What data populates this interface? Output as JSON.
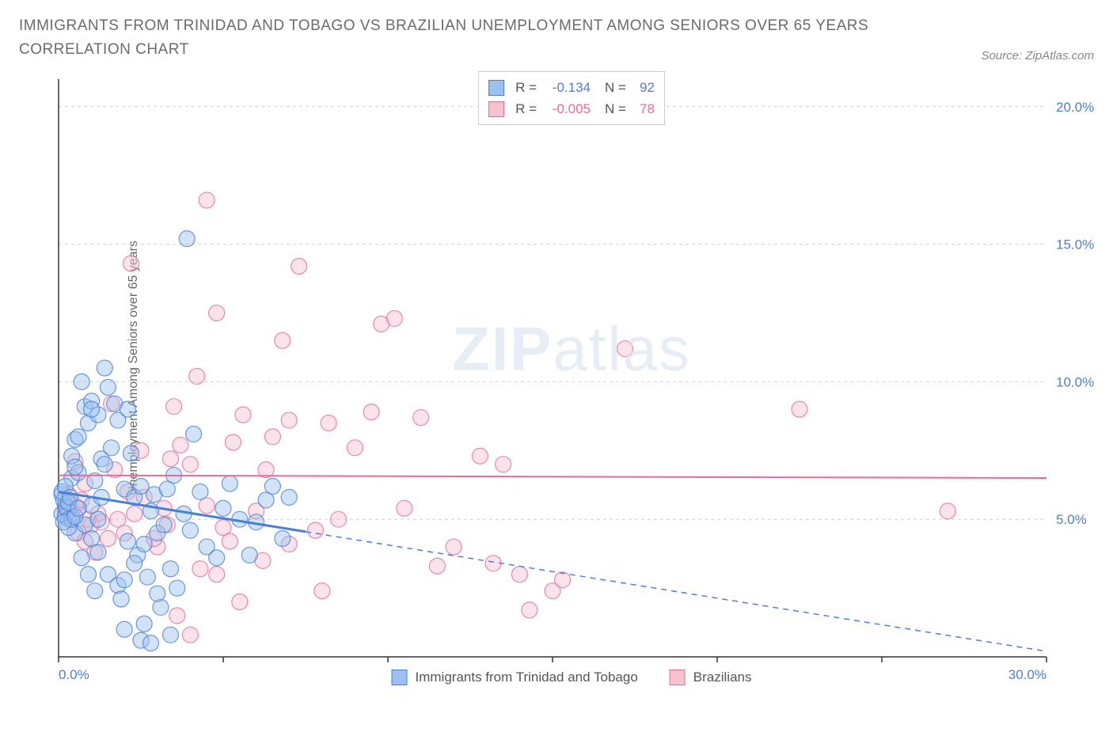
{
  "title": "IMMIGRANTS FROM TRINIDAD AND TOBAGO VS BRAZILIAN UNEMPLOYMENT AMONG SENIORS OVER 65 YEARS CORRELATION CHART",
  "source": "Source: ZipAtlas.com",
  "y_axis_label": "Unemployment Among Seniors over 65 years",
  "watermark_zip": "ZIP",
  "watermark_atlas": "atlas",
  "chart": {
    "type": "scatter",
    "background_color": "#ffffff",
    "grid_color": "#d0d0d0",
    "x_range": [
      0,
      30
    ],
    "y_range": [
      0,
      21
    ],
    "x_ticks": [
      0,
      5,
      10,
      15,
      20,
      25,
      30
    ],
    "x_tick_labels": [
      "0.0%",
      "",
      "",
      "",
      "",
      "",
      "30.0%"
    ],
    "x_tick_color": "#4a7fd8",
    "y_ticks": [
      5,
      10,
      15,
      20
    ],
    "y_tick_labels": [
      "5.0%",
      "10.0%",
      "15.0%",
      "20.0%"
    ],
    "y_tick_color": "#4a7fd8",
    "axis_line_color": "#333333",
    "marker_radius": 10,
    "marker_opacity": 0.45,
    "series": [
      {
        "name": "Immigrants from Trinidad and Tobago",
        "color_fill": "#9cc1f0",
        "color_stroke": "#4a7fd8",
        "r": "-0.134",
        "n": "92",
        "trend": {
          "y_start": 6.0,
          "y_end": 0.2,
          "solid_until_x": 7.5,
          "stroke_width": 3
        },
        "points": [
          [
            0.1,
            5.2
          ],
          [
            0.2,
            5.5
          ],
          [
            0.1,
            5.9
          ],
          [
            0.3,
            5.3
          ],
          [
            0.2,
            5.1
          ],
          [
            0.15,
            5.7
          ],
          [
            0.25,
            5.4
          ],
          [
            0.1,
            6.0
          ],
          [
            0.3,
            5.6
          ],
          [
            0.5,
            7.9
          ],
          [
            0.4,
            6.5
          ],
          [
            0.6,
            6.7
          ],
          [
            0.3,
            5.0
          ],
          [
            0.7,
            10.0
          ],
          [
            0.8,
            9.1
          ],
          [
            0.5,
            4.5
          ],
          [
            0.9,
            8.5
          ],
          [
            1.0,
            9.3
          ],
          [
            1.2,
            8.8
          ],
          [
            1.3,
            7.2
          ],
          [
            1.5,
            9.8
          ],
          [
            1.4,
            7.0
          ],
          [
            1.6,
            7.6
          ],
          [
            1.8,
            8.6
          ],
          [
            1.1,
            6.4
          ],
          [
            1.7,
            9.2
          ],
          [
            2.0,
            6.1
          ],
          [
            2.2,
            7.4
          ],
          [
            2.3,
            5.8
          ],
          [
            2.5,
            6.2
          ],
          [
            2.8,
            5.3
          ],
          [
            2.4,
            3.7
          ],
          [
            2.6,
            4.1
          ],
          [
            3.0,
            4.5
          ],
          [
            3.2,
            4.8
          ],
          [
            3.5,
            6.6
          ],
          [
            3.8,
            5.2
          ],
          [
            3.4,
            3.2
          ],
          [
            3.6,
            2.5
          ],
          [
            4.0,
            4.6
          ],
          [
            1.2,
            3.8
          ],
          [
            1.5,
            3.0
          ],
          [
            1.8,
            2.6
          ],
          [
            2.0,
            2.8
          ],
          [
            2.3,
            3.4
          ],
          [
            2.7,
            2.9
          ],
          [
            2.1,
            4.2
          ],
          [
            1.0,
            5.5
          ],
          [
            1.3,
            5.8
          ],
          [
            1.4,
            10.5
          ],
          [
            0.6,
            8.0
          ],
          [
            0.8,
            4.8
          ],
          [
            1.0,
            4.3
          ],
          [
            1.2,
            5.0
          ],
          [
            2.0,
            1.0
          ],
          [
            2.5,
            0.6
          ],
          [
            2.8,
            0.5
          ],
          [
            3.1,
            1.8
          ],
          [
            3.4,
            0.8
          ],
          [
            3.0,
            2.3
          ],
          [
            2.6,
            1.2
          ],
          [
            1.9,
            2.1
          ],
          [
            0.9,
            3.0
          ],
          [
            1.1,
            2.4
          ],
          [
            0.7,
            3.6
          ],
          [
            4.1,
            8.1
          ],
          [
            4.3,
            6.0
          ],
          [
            4.5,
            4.0
          ],
          [
            4.8,
            3.6
          ],
          [
            5.0,
            5.4
          ],
          [
            5.2,
            6.3
          ],
          [
            5.5,
            5.0
          ],
          [
            5.8,
            3.7
          ],
          [
            6.0,
            4.9
          ],
          [
            6.3,
            5.7
          ],
          [
            6.5,
            6.2
          ],
          [
            6.8,
            4.3
          ],
          [
            7.0,
            5.8
          ],
          [
            0.4,
            7.3
          ],
          [
            0.5,
            6.9
          ],
          [
            3.9,
            15.2
          ],
          [
            1.0,
            9.0
          ],
          [
            2.1,
            9.0
          ],
          [
            0.3,
            4.7
          ],
          [
            0.2,
            6.2
          ],
          [
            0.4,
            5.0
          ],
          [
            0.15,
            4.9
          ],
          [
            0.35,
            5.8
          ],
          [
            0.5,
            5.1
          ],
          [
            0.6,
            5.4
          ],
          [
            2.9,
            5.9
          ],
          [
            3.3,
            6.1
          ]
        ]
      },
      {
        "name": "Brazilians",
        "color_fill": "#f5c2d0",
        "color_stroke": "#e86b94",
        "r": "-0.005",
        "n": "78",
        "trend": {
          "y_start": 6.6,
          "y_end": 6.5,
          "solid_until_x": 30,
          "stroke_width": 2
        },
        "points": [
          [
            0.2,
            5.3
          ],
          [
            0.3,
            5.6
          ],
          [
            0.4,
            5.2
          ],
          [
            0.5,
            5.5
          ],
          [
            0.3,
            5.9
          ],
          [
            0.6,
            5.4
          ],
          [
            0.4,
            5.1
          ],
          [
            0.7,
            5.7
          ],
          [
            0.5,
            7.1
          ],
          [
            0.8,
            6.3
          ],
          [
            1.0,
            4.8
          ],
          [
            1.2,
            5.2
          ],
          [
            1.5,
            4.3
          ],
          [
            1.8,
            5.0
          ],
          [
            2.0,
            4.5
          ],
          [
            2.3,
            5.2
          ],
          [
            2.6,
            5.8
          ],
          [
            2.2,
            14.3
          ],
          [
            3.0,
            4.0
          ],
          [
            3.3,
            4.8
          ],
          [
            3.5,
            9.1
          ],
          [
            3.7,
            7.7
          ],
          [
            4.0,
            7.0
          ],
          [
            4.2,
            10.2
          ],
          [
            4.5,
            16.6
          ],
          [
            4.5,
            5.5
          ],
          [
            4.8,
            12.5
          ],
          [
            5.0,
            4.7
          ],
          [
            5.3,
            7.8
          ],
          [
            5.6,
            8.8
          ],
          [
            6.0,
            5.3
          ],
          [
            6.3,
            6.8
          ],
          [
            6.5,
            8.0
          ],
          [
            6.8,
            11.5
          ],
          [
            7.0,
            8.6
          ],
          [
            7.3,
            14.2
          ],
          [
            7.8,
            4.6
          ],
          [
            8.2,
            8.5
          ],
          [
            8.5,
            5.0
          ],
          [
            9.0,
            7.6
          ],
          [
            9.5,
            8.9
          ],
          [
            9.8,
            12.1
          ],
          [
            10.2,
            12.3
          ],
          [
            10.5,
            5.4
          ],
          [
            11.0,
            8.7
          ],
          [
            11.5,
            3.3
          ],
          [
            12.0,
            4.0
          ],
          [
            12.8,
            7.3
          ],
          [
            13.2,
            3.4
          ],
          [
            13.5,
            7.0
          ],
          [
            14.0,
            3.0
          ],
          [
            14.3,
            1.7
          ],
          [
            15.0,
            2.4
          ],
          [
            15.3,
            2.8
          ],
          [
            17.2,
            11.2
          ],
          [
            22.5,
            9.0
          ],
          [
            27.0,
            5.3
          ],
          [
            3.2,
            5.4
          ],
          [
            3.6,
            1.5
          ],
          [
            4.0,
            0.8
          ],
          [
            4.3,
            3.2
          ],
          [
            4.8,
            3.0
          ],
          [
            5.2,
            4.2
          ],
          [
            5.5,
            2.0
          ],
          [
            6.2,
            3.5
          ],
          [
            7.0,
            4.1
          ],
          [
            8.0,
            2.4
          ],
          [
            1.6,
            9.2
          ],
          [
            2.5,
            7.5
          ],
          [
            2.9,
            4.3
          ],
          [
            3.4,
            7.2
          ],
          [
            0.9,
            5.0
          ],
          [
            1.3,
            4.9
          ],
          [
            1.7,
            6.8
          ],
          [
            2.1,
            6.0
          ],
          [
            0.6,
            4.5
          ],
          [
            0.8,
            4.2
          ],
          [
            1.1,
            3.8
          ]
        ]
      }
    ]
  },
  "legend_bottom_labels": [
    "Immigrants from Trinidad and Tobago",
    "Brazilians"
  ]
}
